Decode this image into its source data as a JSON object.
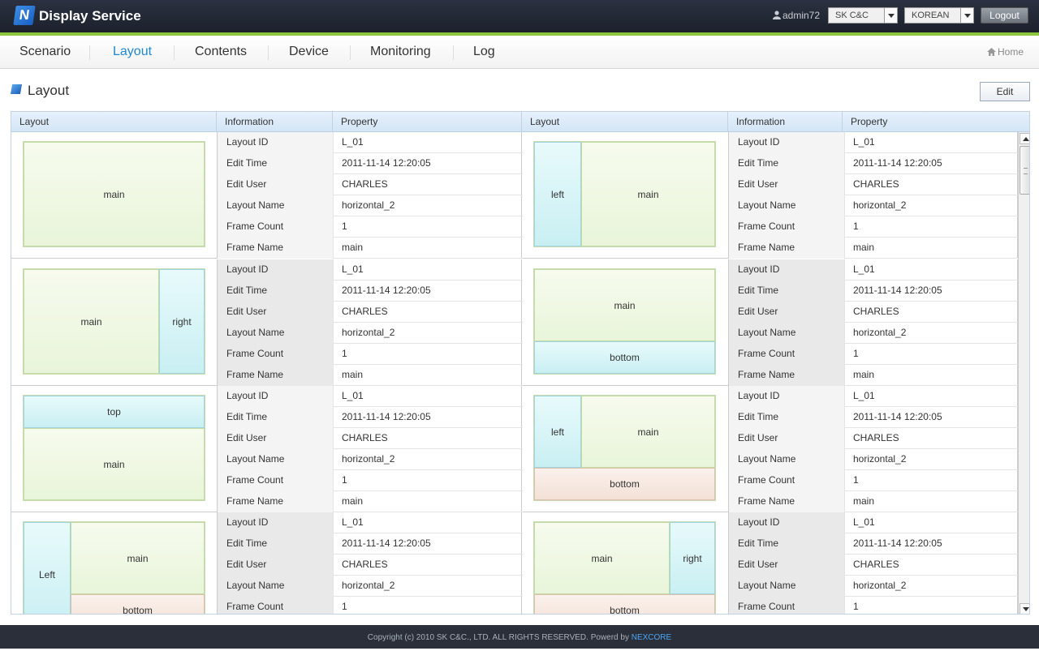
{
  "header": {
    "app_title": "Display Service",
    "logo_letter": "N",
    "user": "admin72",
    "company_select": "SK C&C",
    "language_select": "KOREAN",
    "logout_label": "Logout"
  },
  "nav": {
    "items": [
      "Scenario",
      "Layout",
      "Contents",
      "Device",
      "Monitoring",
      "Log"
    ],
    "active": "Layout",
    "home_label": "Home"
  },
  "page": {
    "title": "Layout",
    "edit_label": "Edit"
  },
  "grid": {
    "columns": [
      "Layout",
      "Information",
      "Property",
      "Layout",
      "Information",
      "Property"
    ],
    "info_keys": [
      "Layout ID",
      "Edit Time",
      "Edit User",
      "Layout Name",
      "Frame Count",
      "Frame Name"
    ],
    "info_values": [
      "L_01",
      "2011-11-14 12:20:05",
      "CHARLES",
      "horizontal_2",
      "1",
      "main"
    ],
    "frames": {
      "main": "main",
      "left": "left",
      "Left": "Left",
      "right": "right",
      "top": "top",
      "bottom": "bottom"
    }
  },
  "footer": {
    "copyright": "Copyright (c) 2010 SK C&C., LTD. ALL RIGHTS RESERVED. Powerd by ",
    "brand": "NEXCORE"
  },
  "colors": {
    "accent": "#1e88d2",
    "header_bg": "#222734",
    "header_line": "#8cc63f",
    "frame_main": "#e9f5da",
    "frame_side": "#c9eff3",
    "frame_bottom": "#f3e1d6"
  }
}
